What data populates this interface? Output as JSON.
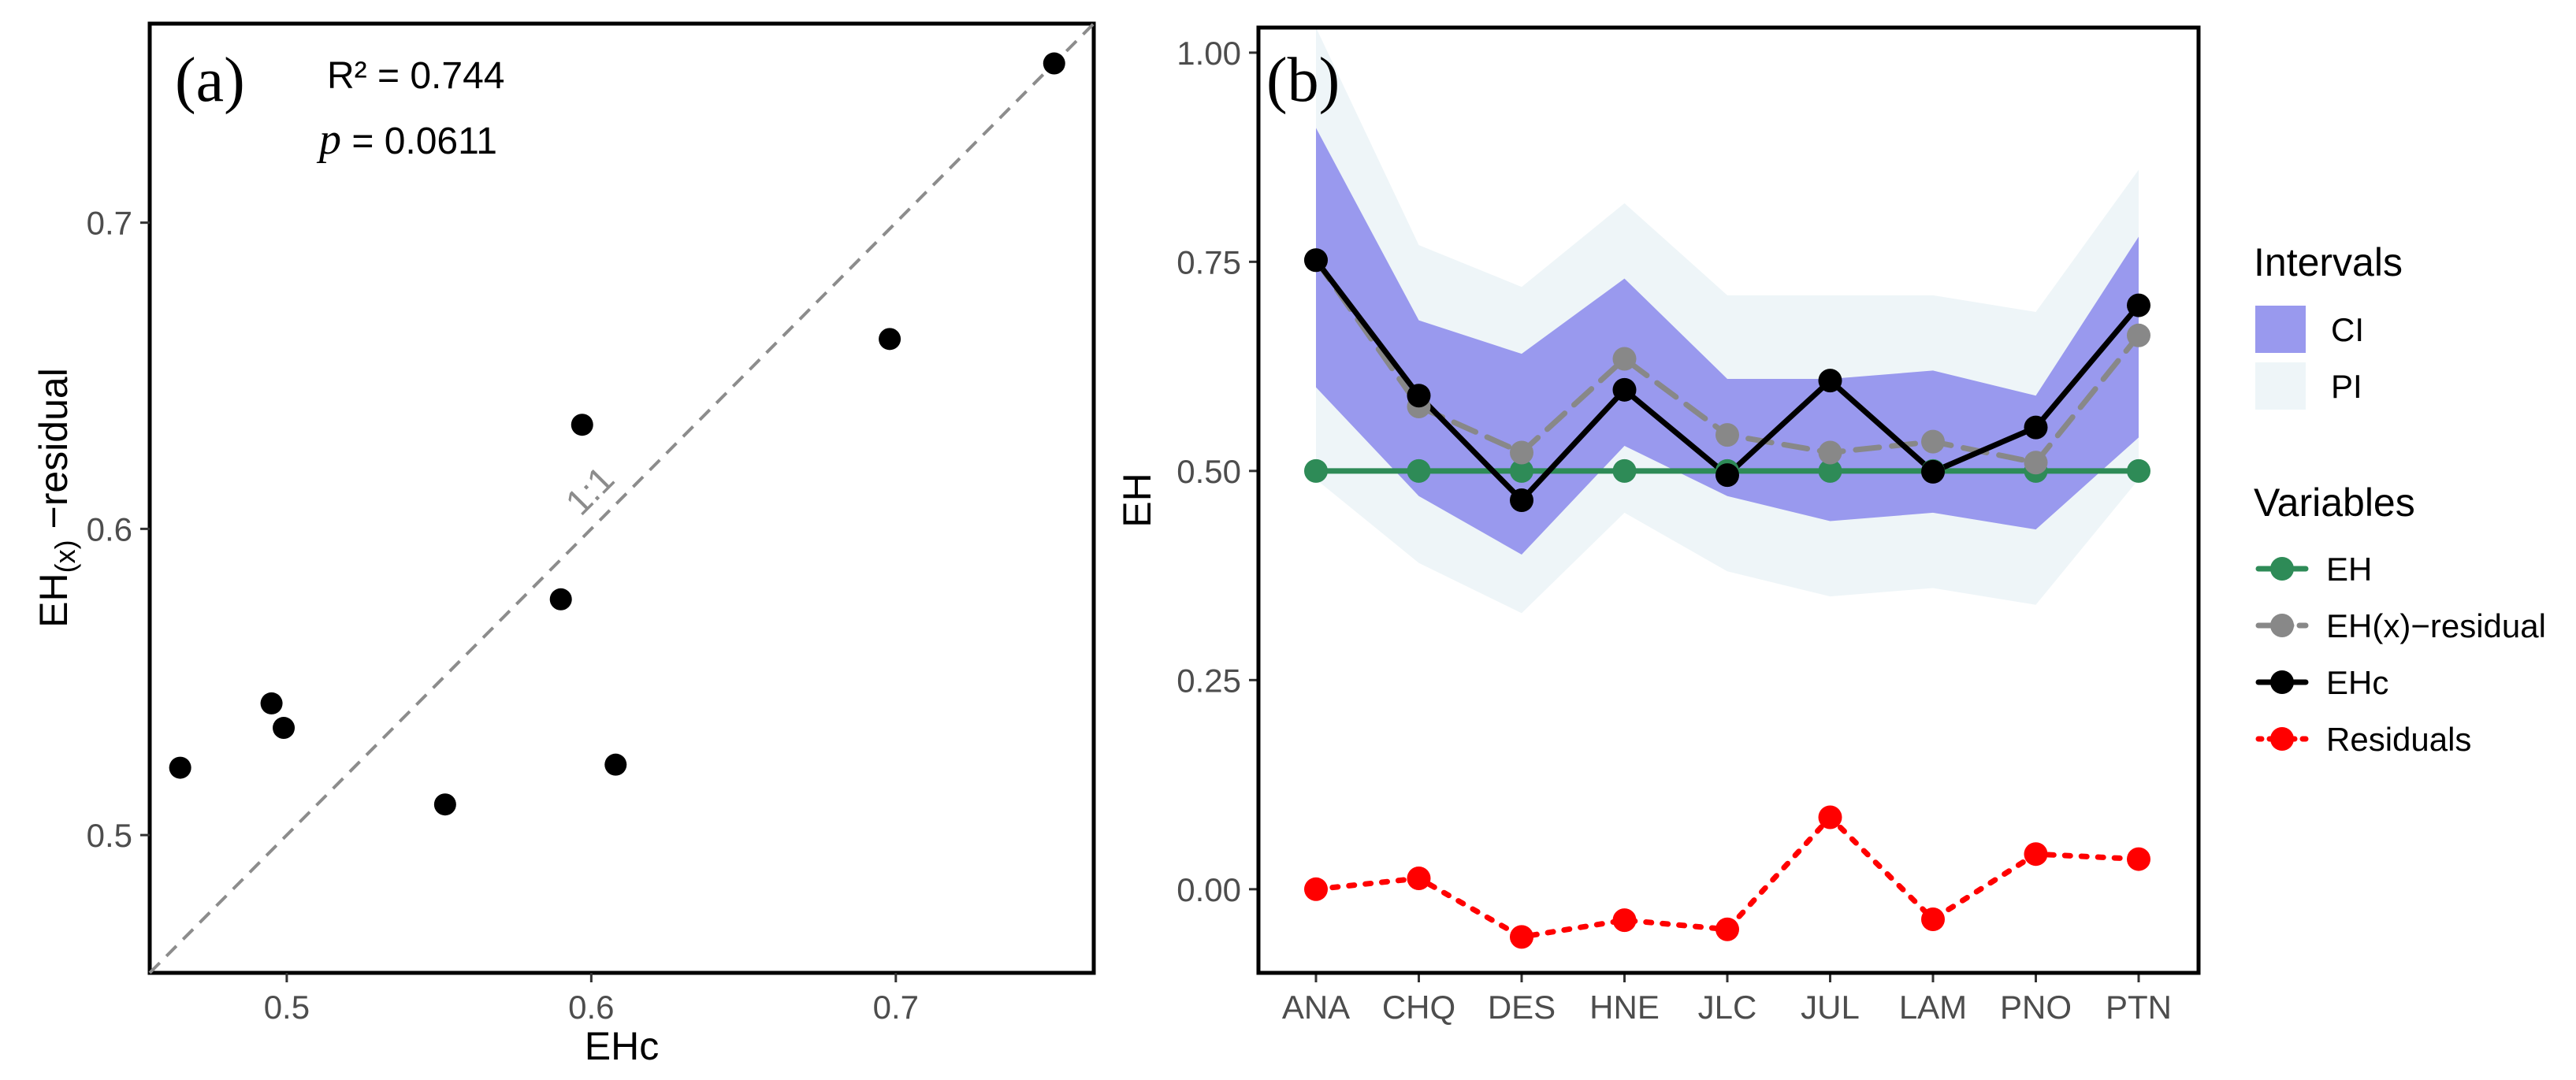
{
  "chart_data": [
    {
      "panel_label": "(a)",
      "type": "scatter",
      "xlabel": "EHc",
      "ylabel": {
        "main": "EH",
        "sub": "(x)",
        "rest": " −residual"
      },
      "xlim": [
        0.455,
        0.765
      ],
      "ylim": [
        0.455,
        0.765
      ],
      "xticks": [
        0.5,
        0.6,
        0.7
      ],
      "yticks": [
        0.5,
        0.6,
        0.7
      ],
      "tick_labels": {
        "x": [
          "0.5",
          "0.6",
          "0.7"
        ],
        "y": [
          "0.5",
          "0.6",
          "0.7"
        ]
      },
      "points": [
        {
          "x": 0.465,
          "y": 0.522
        },
        {
          "x": 0.495,
          "y": 0.543
        },
        {
          "x": 0.499,
          "y": 0.535
        },
        {
          "x": 0.552,
          "y": 0.51
        },
        {
          "x": 0.59,
          "y": 0.577
        },
        {
          "x": 0.597,
          "y": 0.634
        },
        {
          "x": 0.608,
          "y": 0.523
        },
        {
          "x": 0.698,
          "y": 0.662
        },
        {
          "x": 0.752,
          "y": 0.752
        }
      ],
      "reference_line": {
        "label": "1:1",
        "slope": 1,
        "intercept": 0
      },
      "annotations": {
        "r2": "R² = 0.744",
        "p_symbol": "p",
        "p_value": " = 0.0611"
      },
      "grid": false
    },
    {
      "panel_label": "(b)",
      "type": "line",
      "ylabel": "EH",
      "xlabel": "",
      "categories": [
        "ANA",
        "CHQ",
        "DES",
        "HNE",
        "JLC",
        "JUL",
        "LAM",
        "PNO",
        "PTN"
      ],
      "ylim": [
        -0.1,
        1.03
      ],
      "yticks": [
        0.0,
        0.25,
        0.5,
        0.75,
        1.0
      ],
      "ytick_labels": [
        "0.00",
        "0.25",
        "0.50",
        "0.75",
        "1.00"
      ],
      "series": [
        {
          "name": "EH",
          "color": "#2e8b57",
          "dash": "solid",
          "values": [
            0.5,
            0.5,
            0.5,
            0.5,
            0.5,
            0.5,
            0.5,
            0.5,
            0.5
          ]
        },
        {
          "name": "EH(x)−residual",
          "color": "#888888",
          "dash": "dashed",
          "values": [
            0.752,
            0.577,
            0.522,
            0.634,
            0.543,
            0.522,
            0.535,
            0.51,
            0.662
          ]
        },
        {
          "name": "EHc",
          "color": "#000000",
          "dash": "solid",
          "values": [
            0.752,
            0.59,
            0.465,
            0.597,
            0.495,
            0.608,
            0.499,
            0.552,
            0.698
          ]
        },
        {
          "name": "Residuals",
          "color": "#ff0000",
          "dash": "dotted",
          "values": [
            0.0,
            0.013,
            -0.057,
            -0.037,
            -0.048,
            0.086,
            -0.036,
            0.042,
            0.036
          ]
        }
      ],
      "intervals": [
        {
          "name": "CI",
          "color": "#9999ee",
          "lower": [
            0.6,
            0.47,
            0.4,
            0.53,
            0.47,
            0.44,
            0.45,
            0.43,
            0.54
          ],
          "upper": [
            0.91,
            0.68,
            0.64,
            0.73,
            0.61,
            0.61,
            0.62,
            0.59,
            0.78
          ]
        },
        {
          "name": "PI",
          "color": "#eef5f8",
          "lower": [
            0.49,
            0.39,
            0.33,
            0.45,
            0.38,
            0.35,
            0.36,
            0.34,
            0.49
          ],
          "upper": [
            1.03,
            0.77,
            0.72,
            0.82,
            0.71,
            0.71,
            0.71,
            0.69,
            0.86
          ]
        }
      ],
      "legend": {
        "placement": "right",
        "intervals_title": "Intervals",
        "variables_title": "Variables"
      },
      "grid": false
    }
  ]
}
